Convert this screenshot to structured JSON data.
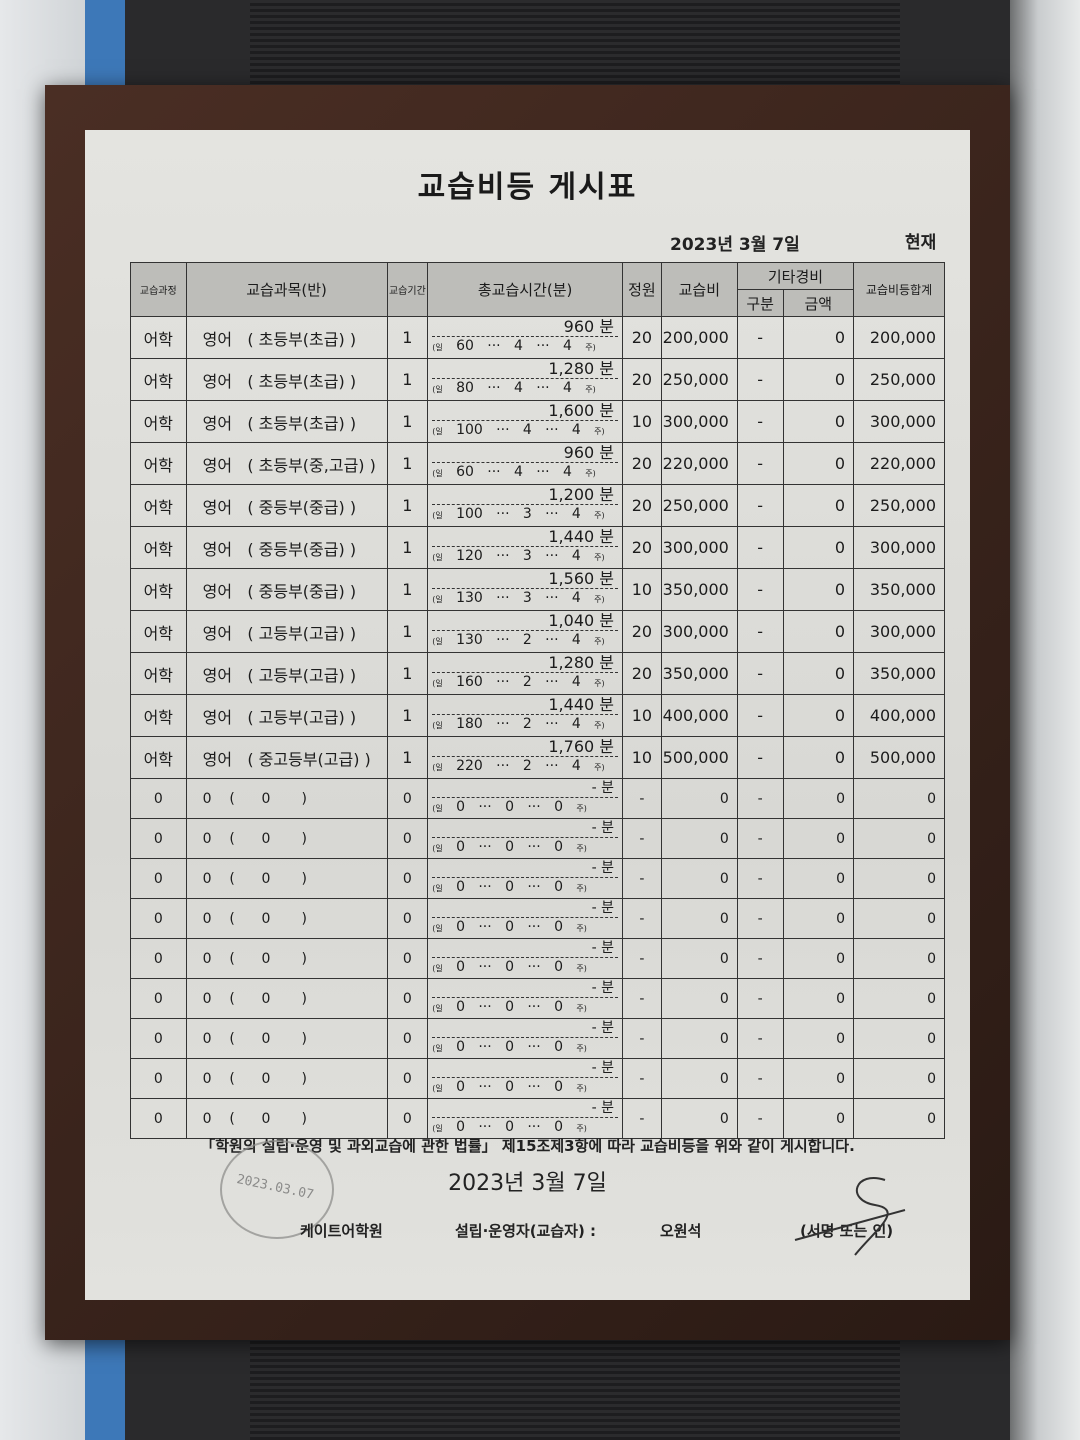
{
  "title": "교습비등 게시표",
  "date_top": "2023년 3월 7일",
  "now_label": "현재",
  "headers": {
    "course": "교습과정",
    "subject": "교습과목(반)",
    "period": "교습기간",
    "total_time": "총교습시간(분)",
    "capacity": "정원",
    "fee": "교습비",
    "other": "기타경비",
    "other_type": "구분",
    "other_amount": "금액",
    "total": "교습비등합계"
  },
  "rows": [
    {
      "course": "어학",
      "subject": "영어   ( 초등부(초급) )",
      "period": "1",
      "minutes": "960",
      "per_day": "60",
      "days": "4",
      "weeks": "4",
      "capacity": "20",
      "fee": "200,000",
      "other_type": "-",
      "other_amount": "0",
      "total": "200,000"
    },
    {
      "course": "어학",
      "subject": "영어   ( 초등부(초급) )",
      "period": "1",
      "minutes": "1,280",
      "per_day": "80",
      "days": "4",
      "weeks": "4",
      "capacity": "20",
      "fee": "250,000",
      "other_type": "-",
      "other_amount": "0",
      "total": "250,000"
    },
    {
      "course": "어학",
      "subject": "영어   ( 초등부(초급) )",
      "period": "1",
      "minutes": "1,600",
      "per_day": "100",
      "days": "4",
      "weeks": "4",
      "capacity": "10",
      "fee": "300,000",
      "other_type": "-",
      "other_amount": "0",
      "total": "300,000"
    },
    {
      "course": "어학",
      "subject": "영어   ( 초등부(중,고급) )",
      "period": "1",
      "minutes": "960",
      "per_day": "60",
      "days": "4",
      "weeks": "4",
      "capacity": "20",
      "fee": "220,000",
      "other_type": "-",
      "other_amount": "0",
      "total": "220,000"
    },
    {
      "course": "어학",
      "subject": "영어   ( 중등부(중급) )",
      "period": "1",
      "minutes": "1,200",
      "per_day": "100",
      "days": "3",
      "weeks": "4",
      "capacity": "20",
      "fee": "250,000",
      "other_type": "-",
      "other_amount": "0",
      "total": "250,000"
    },
    {
      "course": "어학",
      "subject": "영어   ( 중등부(중급) )",
      "period": "1",
      "minutes": "1,440",
      "per_day": "120",
      "days": "3",
      "weeks": "4",
      "capacity": "20",
      "fee": "300,000",
      "other_type": "-",
      "other_amount": "0",
      "total": "300,000"
    },
    {
      "course": "어학",
      "subject": "영어   ( 중등부(중급) )",
      "period": "1",
      "minutes": "1,560",
      "per_day": "130",
      "days": "3",
      "weeks": "4",
      "capacity": "10",
      "fee": "350,000",
      "other_type": "-",
      "other_amount": "0",
      "total": "350,000"
    },
    {
      "course": "어학",
      "subject": "영어   ( 고등부(고급) )",
      "period": "1",
      "minutes": "1,040",
      "per_day": "130",
      "days": "2",
      "weeks": "4",
      "capacity": "20",
      "fee": "300,000",
      "other_type": "-",
      "other_amount": "0",
      "total": "300,000"
    },
    {
      "course": "어학",
      "subject": "영어   ( 고등부(고급) )",
      "period": "1",
      "minutes": "1,280",
      "per_day": "160",
      "days": "2",
      "weeks": "4",
      "capacity": "20",
      "fee": "350,000",
      "other_type": "-",
      "other_amount": "0",
      "total": "350,000"
    },
    {
      "course": "어학",
      "subject": "영어   ( 고등부(고급) )",
      "period": "1",
      "minutes": "1,440",
      "per_day": "180",
      "days": "2",
      "weeks": "4",
      "capacity": "10",
      "fee": "400,000",
      "other_type": "-",
      "other_amount": "0",
      "total": "400,000"
    },
    {
      "course": "어학",
      "subject": "영어   ( 중고등부(고급) )",
      "period": "1",
      "minutes": "1,760",
      "per_day": "220",
      "days": "2",
      "weeks": "4",
      "capacity": "10",
      "fee": "500,000",
      "other_type": "-",
      "other_amount": "0",
      "total": "500,000"
    },
    {
      "course": "0",
      "subject": "0    (      0       )",
      "period": "0",
      "minutes": "-",
      "per_day": "0",
      "days": "0",
      "weeks": "0",
      "capacity": "-",
      "fee": "0",
      "other_type": "-",
      "other_amount": "0",
      "total": "0"
    },
    {
      "course": "0",
      "subject": "0    (      0       )",
      "period": "0",
      "minutes": "-",
      "per_day": "0",
      "days": "0",
      "weeks": "0",
      "capacity": "-",
      "fee": "0",
      "other_type": "-",
      "other_amount": "0",
      "total": "0"
    },
    {
      "course": "0",
      "subject": "0    (      0       )",
      "period": "0",
      "minutes": "-",
      "per_day": "0",
      "days": "0",
      "weeks": "0",
      "capacity": "-",
      "fee": "0",
      "other_type": "-",
      "other_amount": "0",
      "total": "0"
    },
    {
      "course": "0",
      "subject": "0    (      0       )",
      "period": "0",
      "minutes": "-",
      "per_day": "0",
      "days": "0",
      "weeks": "0",
      "capacity": "-",
      "fee": "0",
      "other_type": "-",
      "other_amount": "0",
      "total": "0"
    },
    {
      "course": "0",
      "subject": "0    (      0       )",
      "period": "0",
      "minutes": "-",
      "per_day": "0",
      "days": "0",
      "weeks": "0",
      "capacity": "-",
      "fee": "0",
      "other_type": "-",
      "other_amount": "0",
      "total": "0"
    },
    {
      "course": "0",
      "subject": "0    (      0       )",
      "period": "0",
      "minutes": "-",
      "per_day": "0",
      "days": "0",
      "weeks": "0",
      "capacity": "-",
      "fee": "0",
      "other_type": "-",
      "other_amount": "0",
      "total": "0"
    },
    {
      "course": "0",
      "subject": "0    (      0       )",
      "period": "0",
      "minutes": "-",
      "per_day": "0",
      "days": "0",
      "weeks": "0",
      "capacity": "-",
      "fee": "0",
      "other_type": "-",
      "other_amount": "0",
      "total": "0"
    },
    {
      "course": "0",
      "subject": "0    (      0       )",
      "period": "0",
      "minutes": "-",
      "per_day": "0",
      "days": "0",
      "weeks": "0",
      "capacity": "-",
      "fee": "0",
      "other_type": "-",
      "other_amount": "0",
      "total": "0"
    },
    {
      "course": "0",
      "subject": "0    (      0       )",
      "period": "0",
      "minutes": "-",
      "per_day": "0",
      "days": "0",
      "weeks": "0",
      "capacity": "-",
      "fee": "0",
      "other_type": "-",
      "other_amount": "0",
      "total": "0"
    }
  ],
  "units": {
    "minute": "분",
    "day": "(일",
    "week": "주)",
    "dots": "···"
  },
  "law_text": "「학원의 설립·운영 및 과외교습에 관한 법률」 제15조제3항에 따라 교습비등을 위와 같이 게시합니다.",
  "date_bottom": "2023년 3월 7일",
  "academy_name": "케이트어학원",
  "founder_label": "설립·운영자(교습자) :",
  "founder_name": "오원석",
  "sign_label": "(서명 또는 인)",
  "stamp_text": "2023.03.07"
}
